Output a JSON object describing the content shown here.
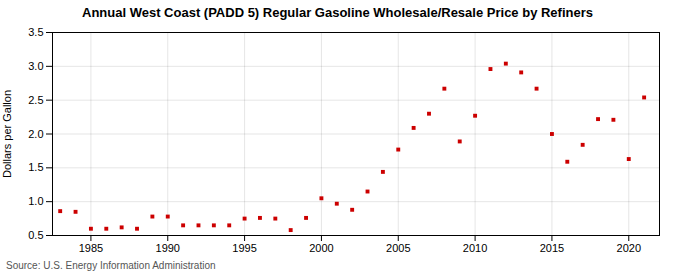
{
  "chart_data": {
    "type": "scatter",
    "title": "Annual West Coast (PADD 5) Regular Gasoline Wholesale/Resale Price by Refiners",
    "ylabel": "Dollars per Gallon",
    "source": "Source: U.S. Energy Information Administration",
    "x": [
      1983,
      1984,
      1985,
      1986,
      1987,
      1988,
      1989,
      1990,
      1991,
      1992,
      1993,
      1994,
      1995,
      1996,
      1997,
      1998,
      1999,
      2000,
      2001,
      2002,
      2003,
      2004,
      2005,
      2006,
      2007,
      2008,
      2009,
      2010,
      2011,
      2012,
      2013,
      2014,
      2015,
      2016,
      2017,
      2018,
      2019,
      2020,
      2021
    ],
    "values": [
      0.86,
      0.85,
      0.6,
      0.6,
      0.62,
      0.6,
      0.78,
      0.78,
      0.65,
      0.65,
      0.65,
      0.65,
      0.75,
      0.76,
      0.75,
      0.58,
      0.76,
      1.05,
      0.97,
      0.88,
      1.15,
      1.44,
      1.77,
      2.09,
      2.3,
      2.67,
      1.89,
      2.27,
      2.96,
      3.04,
      2.91,
      2.67,
      2.0,
      1.59,
      1.84,
      2.22,
      2.21,
      1.63,
      2.54
    ],
    "color": "#cc0000",
    "marker": "square",
    "xlim": [
      1982.5,
      2022
    ],
    "xticks": [
      1985,
      1990,
      1995,
      2000,
      2005,
      2010,
      2015,
      2020
    ],
    "ylim": [
      0.5,
      3.5
    ],
    "yticks": [
      0.5,
      {
        "value": 1.0,
        "label": "1.0"
      },
      1.5,
      {
        "value": 2.0,
        "label": "2.0"
      },
      2.5,
      {
        "value": 3.0,
        "label": "3.0"
      },
      3.5
    ],
    "grid": true
  }
}
